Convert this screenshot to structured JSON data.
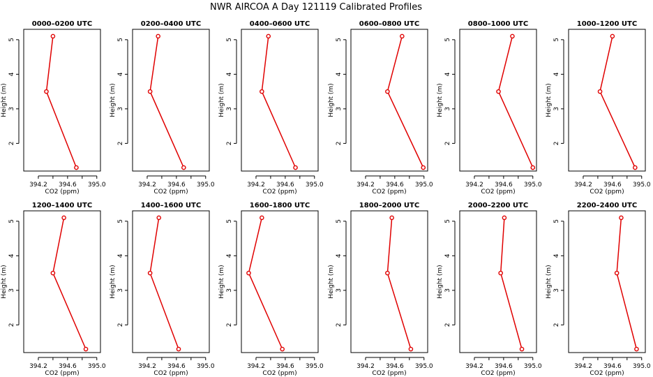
{
  "title": "NWR AIRCOA A  Day 121119  Calibrated Profiles",
  "chart_data": [
    {
      "type": "line",
      "title": "0000–0200 UTC",
      "xlabel": "CO2 (ppm)",
      "ylabel": "Height (m)",
      "x": [
        394.72,
        394.31,
        394.4
      ],
      "y": [
        1.3,
        3.5,
        5.1
      ],
      "xlim": [
        394.0,
        395.05
      ],
      "ylim": [
        1.2,
        5.3
      ],
      "x_ticks": [
        "394.2",
        "394.6",
        "395.0"
      ],
      "y_ticks": [
        "2",
        "3",
        "4",
        "5"
      ],
      "color": "#e00000"
    },
    {
      "type": "line",
      "title": "0200–0400 UTC",
      "xlabel": "CO2 (ppm)",
      "ylabel": "Height (m)",
      "x": [
        394.7,
        394.24,
        394.35
      ],
      "y": [
        1.3,
        3.5,
        5.1
      ],
      "xlim": [
        394.0,
        395.05
      ],
      "ylim": [
        1.2,
        5.3
      ],
      "x_ticks": [
        "394.2",
        "394.6",
        "395.0"
      ],
      "y_ticks": [
        "2",
        "3",
        "4",
        "5"
      ],
      "color": "#e00000"
    },
    {
      "type": "line",
      "title": "0400–0600 UTC",
      "xlabel": "CO2 (ppm)",
      "ylabel": "Height (m)",
      "x": [
        394.74,
        394.28,
        394.37
      ],
      "y": [
        1.3,
        3.5,
        5.1
      ],
      "xlim": [
        394.0,
        395.05
      ],
      "ylim": [
        1.2,
        5.3
      ],
      "x_ticks": [
        "394.2",
        "394.6",
        "395.0"
      ],
      "y_ticks": [
        "2",
        "3",
        "4",
        "5"
      ],
      "color": "#e00000"
    },
    {
      "type": "line",
      "title": "0600–0800 UTC",
      "xlabel": "CO2 (ppm)",
      "ylabel": "Height (m)",
      "x": [
        394.99,
        394.5,
        394.7
      ],
      "y": [
        1.3,
        3.5,
        5.1
      ],
      "xlim": [
        394.0,
        395.05
      ],
      "ylim": [
        1.2,
        5.3
      ],
      "x_ticks": [
        "394.2",
        "394.6",
        "395.0"
      ],
      "y_ticks": [
        "2",
        "3",
        "4",
        "5"
      ],
      "color": "#e00000"
    },
    {
      "type": "line",
      "title": "0800–1000 UTC",
      "xlabel": "CO2 (ppm)",
      "ylabel": "Height (m)",
      "x": [
        395.0,
        394.53,
        394.72
      ],
      "y": [
        1.3,
        3.5,
        5.1
      ],
      "xlim": [
        394.0,
        395.05
      ],
      "ylim": [
        1.2,
        5.3
      ],
      "x_ticks": [
        "394.2",
        "394.6",
        "395.0"
      ],
      "y_ticks": [
        "2",
        "3",
        "4",
        "5"
      ],
      "color": "#e00000"
    },
    {
      "type": "line",
      "title": "1000–1200 UTC",
      "xlabel": "CO2 (ppm)",
      "ylabel": "Height (m)",
      "x": [
        394.91,
        394.43,
        394.6
      ],
      "y": [
        1.3,
        3.5,
        5.1
      ],
      "xlim": [
        394.0,
        395.05
      ],
      "ylim": [
        1.2,
        5.3
      ],
      "x_ticks": [
        "394.2",
        "394.6",
        "395.0"
      ],
      "y_ticks": [
        "2",
        "3",
        "4",
        "5"
      ],
      "color": "#e00000"
    },
    {
      "type": "line",
      "title": "1200–1400 UTC",
      "xlabel": "CO2 (ppm)",
      "ylabel": "Height (m)",
      "x": [
        394.85,
        394.4,
        394.55
      ],
      "y": [
        1.3,
        3.5,
        5.1
      ],
      "xlim": [
        394.0,
        395.05
      ],
      "ylim": [
        1.2,
        5.3
      ],
      "x_ticks": [
        "394.2",
        "394.6",
        "395.0"
      ],
      "y_ticks": [
        "2",
        "3",
        "4",
        "5"
      ],
      "color": "#e00000"
    },
    {
      "type": "line",
      "title": "1400–1600 UTC",
      "xlabel": "CO2 (ppm)",
      "ylabel": "Height (m)",
      "x": [
        394.63,
        394.24,
        394.36
      ],
      "y": [
        1.3,
        3.5,
        5.1
      ],
      "xlim": [
        394.0,
        395.05
      ],
      "ylim": [
        1.2,
        5.3
      ],
      "x_ticks": [
        "394.2",
        "394.6",
        "395.0"
      ],
      "y_ticks": [
        "2",
        "3",
        "4",
        "5"
      ],
      "color": "#e00000"
    },
    {
      "type": "line",
      "title": "1600–1800 UTC",
      "xlabel": "CO2 (ppm)",
      "ylabel": "Height (m)",
      "x": [
        394.56,
        394.1,
        394.28
      ],
      "y": [
        1.3,
        3.5,
        5.1
      ],
      "xlim": [
        394.0,
        395.05
      ],
      "ylim": [
        1.2,
        5.3
      ],
      "x_ticks": [
        "394.2",
        "394.6",
        "395.0"
      ],
      "y_ticks": [
        "2",
        "3",
        "4",
        "5"
      ],
      "color": "#e00000"
    },
    {
      "type": "line",
      "title": "1800–2000 UTC",
      "xlabel": "CO2 (ppm)",
      "ylabel": "Height (m)",
      "x": [
        394.82,
        394.5,
        394.56
      ],
      "y": [
        1.3,
        3.5,
        5.1
      ],
      "xlim": [
        394.0,
        395.05
      ],
      "ylim": [
        1.2,
        5.3
      ],
      "x_ticks": [
        "394.2",
        "394.6",
        "395.0"
      ],
      "y_ticks": [
        "2",
        "3",
        "4",
        "5"
      ],
      "color": "#e00000"
    },
    {
      "type": "line",
      "title": "2000–2200 UTC",
      "xlabel": "CO2 (ppm)",
      "ylabel": "Height (m)",
      "x": [
        394.85,
        394.56,
        394.61
      ],
      "y": [
        1.3,
        3.5,
        5.1
      ],
      "xlim": [
        394.0,
        395.05
      ],
      "ylim": [
        1.2,
        5.3
      ],
      "x_ticks": [
        "394.2",
        "394.6",
        "395.0"
      ],
      "y_ticks": [
        "2",
        "3",
        "4",
        "5"
      ],
      "color": "#e00000"
    },
    {
      "type": "line",
      "title": "2200–2400 UTC",
      "xlabel": "CO2 (ppm)",
      "ylabel": "Height (m)",
      "x": [
        394.93,
        394.66,
        394.72
      ],
      "y": [
        1.3,
        3.5,
        5.1
      ],
      "xlim": [
        394.0,
        395.05
      ],
      "ylim": [
        1.2,
        5.3
      ],
      "x_ticks": [
        "394.2",
        "394.6",
        "395.0"
      ],
      "y_ticks": [
        "2",
        "3",
        "4",
        "5"
      ],
      "color": "#e00000"
    }
  ]
}
